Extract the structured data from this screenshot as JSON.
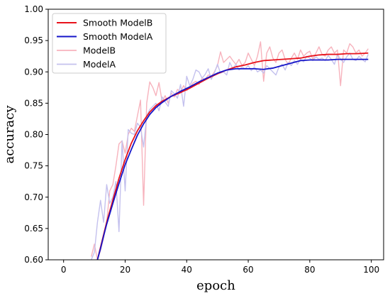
{
  "chart_data": {
    "type": "line",
    "title": "",
    "xlabel": "epoch",
    "ylabel": "accuracy",
    "xlim": [
      -5,
      104
    ],
    "ylim": [
      0.6,
      1.0
    ],
    "xticks": [
      0,
      20,
      40,
      60,
      80,
      100
    ],
    "yticks": [
      0.6,
      0.65,
      0.7,
      0.75,
      0.8,
      0.85,
      0.9,
      0.95,
      1.0
    ],
    "xtick_labels": [
      "0",
      "20",
      "40",
      "60",
      "80",
      "100"
    ],
    "ytick_labels": [
      "0.60",
      "0.65",
      "0.70",
      "0.75",
      "0.80",
      "0.85",
      "0.90",
      "0.95",
      "1.00"
    ],
    "grid": false,
    "legend": "top-left",
    "series": [
      {
        "name": "Smooth ModelB",
        "color": "#e8121b",
        "style": "solid",
        "x": [
          11,
          12,
          13,
          14,
          16,
          18,
          20,
          22,
          24,
          26,
          28,
          30,
          32,
          35,
          38,
          41,
          44,
          47,
          50,
          53,
          56,
          59,
          62,
          65,
          68,
          71,
          74,
          77,
          80,
          83,
          86,
          89,
          92,
          95,
          99
        ],
        "values": [
          0.6,
          0.62,
          0.64,
          0.66,
          0.695,
          0.73,
          0.76,
          0.786,
          0.806,
          0.822,
          0.836,
          0.846,
          0.853,
          0.861,
          0.867,
          0.874,
          0.882,
          0.89,
          0.897,
          0.903,
          0.908,
          0.911,
          0.915,
          0.918,
          0.919,
          0.92,
          0.921,
          0.922,
          0.925,
          0.927,
          0.928,
          0.928,
          0.929,
          0.929,
          0.93
        ]
      },
      {
        "name": "Smooth ModelA",
        "color": "#1515c8",
        "style": "solid",
        "x": [
          11,
          12,
          13,
          14,
          16,
          18,
          20,
          22,
          24,
          26,
          28,
          30,
          32,
          35,
          38,
          41,
          44,
          47,
          50,
          53,
          56,
          59,
          62,
          65,
          68,
          71,
          74,
          77,
          80,
          83,
          86,
          89,
          92,
          95,
          99
        ],
        "values": [
          0.6,
          0.618,
          0.638,
          0.657,
          0.69,
          0.722,
          0.752,
          0.776,
          0.799,
          0.817,
          0.832,
          0.843,
          0.851,
          0.861,
          0.869,
          0.876,
          0.884,
          0.891,
          0.898,
          0.903,
          0.905,
          0.905,
          0.905,
          0.904,
          0.906,
          0.91,
          0.914,
          0.918,
          0.919,
          0.919,
          0.919,
          0.92,
          0.92,
          0.92,
          0.92
        ]
      },
      {
        "name": "ModelB",
        "color": "#f7b3bd",
        "style": "solid",
        "x": [
          9,
          10,
          11,
          12,
          13,
          14,
          15,
          16,
          17,
          18,
          19,
          20,
          21,
          22,
          23,
          24,
          25,
          26,
          27,
          28,
          29,
          30,
          31,
          32,
          33,
          34,
          35,
          36,
          37,
          38,
          39,
          40,
          41,
          42,
          43,
          44,
          45,
          46,
          47,
          48,
          49,
          50,
          51,
          52,
          53,
          54,
          55,
          56,
          57,
          58,
          59,
          60,
          61,
          62,
          63,
          64,
          65,
          66,
          67,
          68,
          69,
          70,
          71,
          72,
          73,
          74,
          75,
          76,
          77,
          78,
          79,
          80,
          81,
          82,
          83,
          84,
          85,
          86,
          87,
          88,
          89,
          90,
          91,
          92,
          93,
          94,
          95,
          96,
          97,
          98,
          99
        ],
        "values": [
          0.605,
          0.625,
          0.6,
          0.615,
          0.635,
          0.66,
          0.71,
          0.72,
          0.75,
          0.785,
          0.79,
          0.77,
          0.8,
          0.81,
          0.805,
          0.83,
          0.855,
          0.687,
          0.85,
          0.884,
          0.875,
          0.862,
          0.883,
          0.853,
          0.862,
          0.85,
          0.866,
          0.86,
          0.872,
          0.868,
          0.878,
          0.87,
          0.875,
          0.882,
          0.885,
          0.88,
          0.89,
          0.888,
          0.895,
          0.893,
          0.9,
          0.91,
          0.932,
          0.915,
          0.92,
          0.925,
          0.918,
          0.912,
          0.92,
          0.91,
          0.915,
          0.93,
          0.92,
          0.91,
          0.925,
          0.948,
          0.885,
          0.93,
          0.94,
          0.922,
          0.915,
          0.93,
          0.935,
          0.92,
          0.912,
          0.922,
          0.93,
          0.92,
          0.935,
          0.925,
          0.93,
          0.933,
          0.92,
          0.93,
          0.94,
          0.928,
          0.925,
          0.935,
          0.94,
          0.93,
          0.935,
          0.878,
          0.935,
          0.93,
          0.945,
          0.94,
          0.93,
          0.935,
          0.925,
          0.93,
          0.937
        ]
      },
      {
        "name": "ModelA",
        "color": "#c4c1ee",
        "style": "solid",
        "x": [
          9,
          10,
          11,
          12,
          13,
          14,
          15,
          16,
          17,
          18,
          19,
          20,
          21,
          22,
          23,
          24,
          25,
          26,
          27,
          28,
          29,
          30,
          31,
          32,
          33,
          34,
          35,
          36,
          37,
          38,
          39,
          40,
          41,
          42,
          43,
          44,
          45,
          46,
          47,
          48,
          49,
          50,
          51,
          52,
          53,
          54,
          55,
          56,
          57,
          58,
          59,
          60,
          61,
          62,
          63,
          64,
          65,
          66,
          67,
          68,
          69,
          70,
          71,
          72,
          73,
          74,
          75,
          76,
          77,
          78,
          79,
          80,
          81,
          82,
          83,
          84,
          85,
          86,
          87,
          88,
          89,
          90,
          91,
          92,
          93,
          94,
          95,
          96,
          97,
          98,
          99
        ],
        "values": [
          0.6,
          0.612,
          0.66,
          0.695,
          0.66,
          0.72,
          0.69,
          0.7,
          0.725,
          0.645,
          0.79,
          0.71,
          0.808,
          0.802,
          0.8,
          0.818,
          0.812,
          0.78,
          0.83,
          0.84,
          0.845,
          0.85,
          0.838,
          0.86,
          0.852,
          0.845,
          0.87,
          0.865,
          0.858,
          0.88,
          0.845,
          0.893,
          0.878,
          0.888,
          0.903,
          0.9,
          0.89,
          0.896,
          0.905,
          0.888,
          0.898,
          0.912,
          0.898,
          0.9,
          0.895,
          0.915,
          0.905,
          0.912,
          0.903,
          0.908,
          0.905,
          0.91,
          0.902,
          0.908,
          0.9,
          0.903,
          0.898,
          0.91,
          0.905,
          0.9,
          0.895,
          0.908,
          0.912,
          0.903,
          0.915,
          0.91,
          0.918,
          0.912,
          0.92,
          0.916,
          0.925,
          0.922,
          0.918,
          0.924,
          0.92,
          0.922,
          0.918,
          0.926,
          0.92,
          0.912,
          0.928,
          0.92,
          0.915,
          0.924,
          0.93,
          0.92,
          0.918,
          0.925,
          0.92,
          0.916,
          0.928
        ]
      }
    ]
  }
}
